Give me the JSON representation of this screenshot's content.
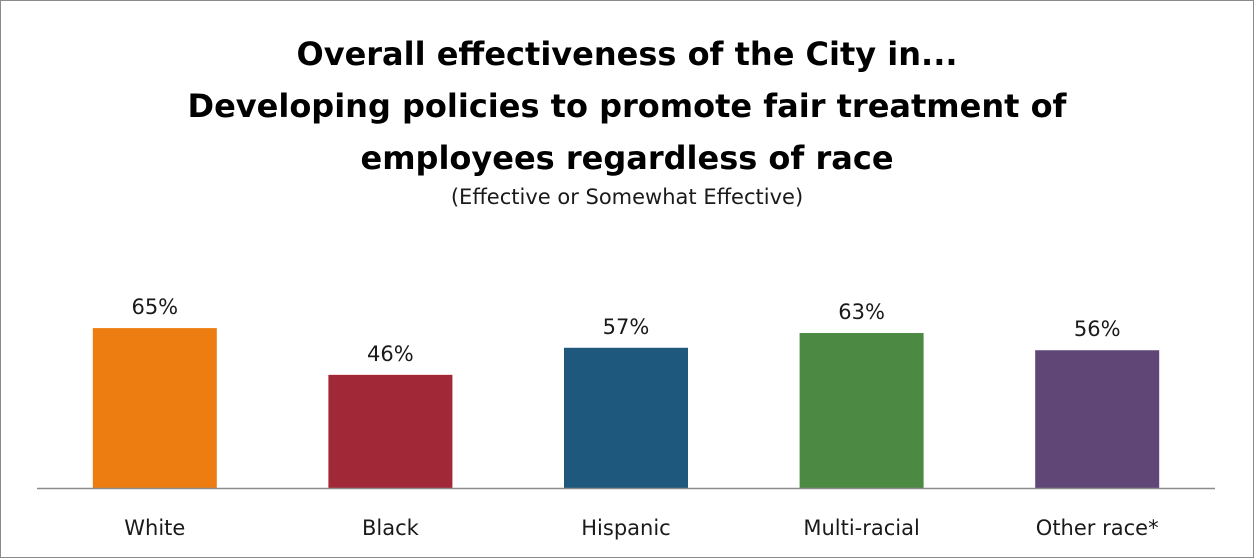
{
  "chart_data": {
    "type": "bar",
    "title": "Overall effectiveness of the City in... Developing policies to promote fair treatment of employees regardless of race",
    "title_lines": [
      "Overall effectiveness of the City in...",
      "Developing policies to promote fair treatment of",
      "employees regardless of race"
    ],
    "subtitle": "(Effective or Somewhat Effective)",
    "categories": [
      "White",
      "Black",
      "Hispanic",
      "Multi-racial",
      "Other race*"
    ],
    "values": [
      65,
      46,
      57,
      63,
      56
    ],
    "value_labels": [
      "65%",
      "46%",
      "57%",
      "63%",
      "56%"
    ],
    "colors": [
      "#ED7D11",
      "#A12836",
      "#1E587C",
      "#4C8A43",
      "#5F4677"
    ],
    "ylim": [
      0,
      100
    ],
    "xlabel": "",
    "ylabel": "",
    "grid": false,
    "legend": "none"
  }
}
